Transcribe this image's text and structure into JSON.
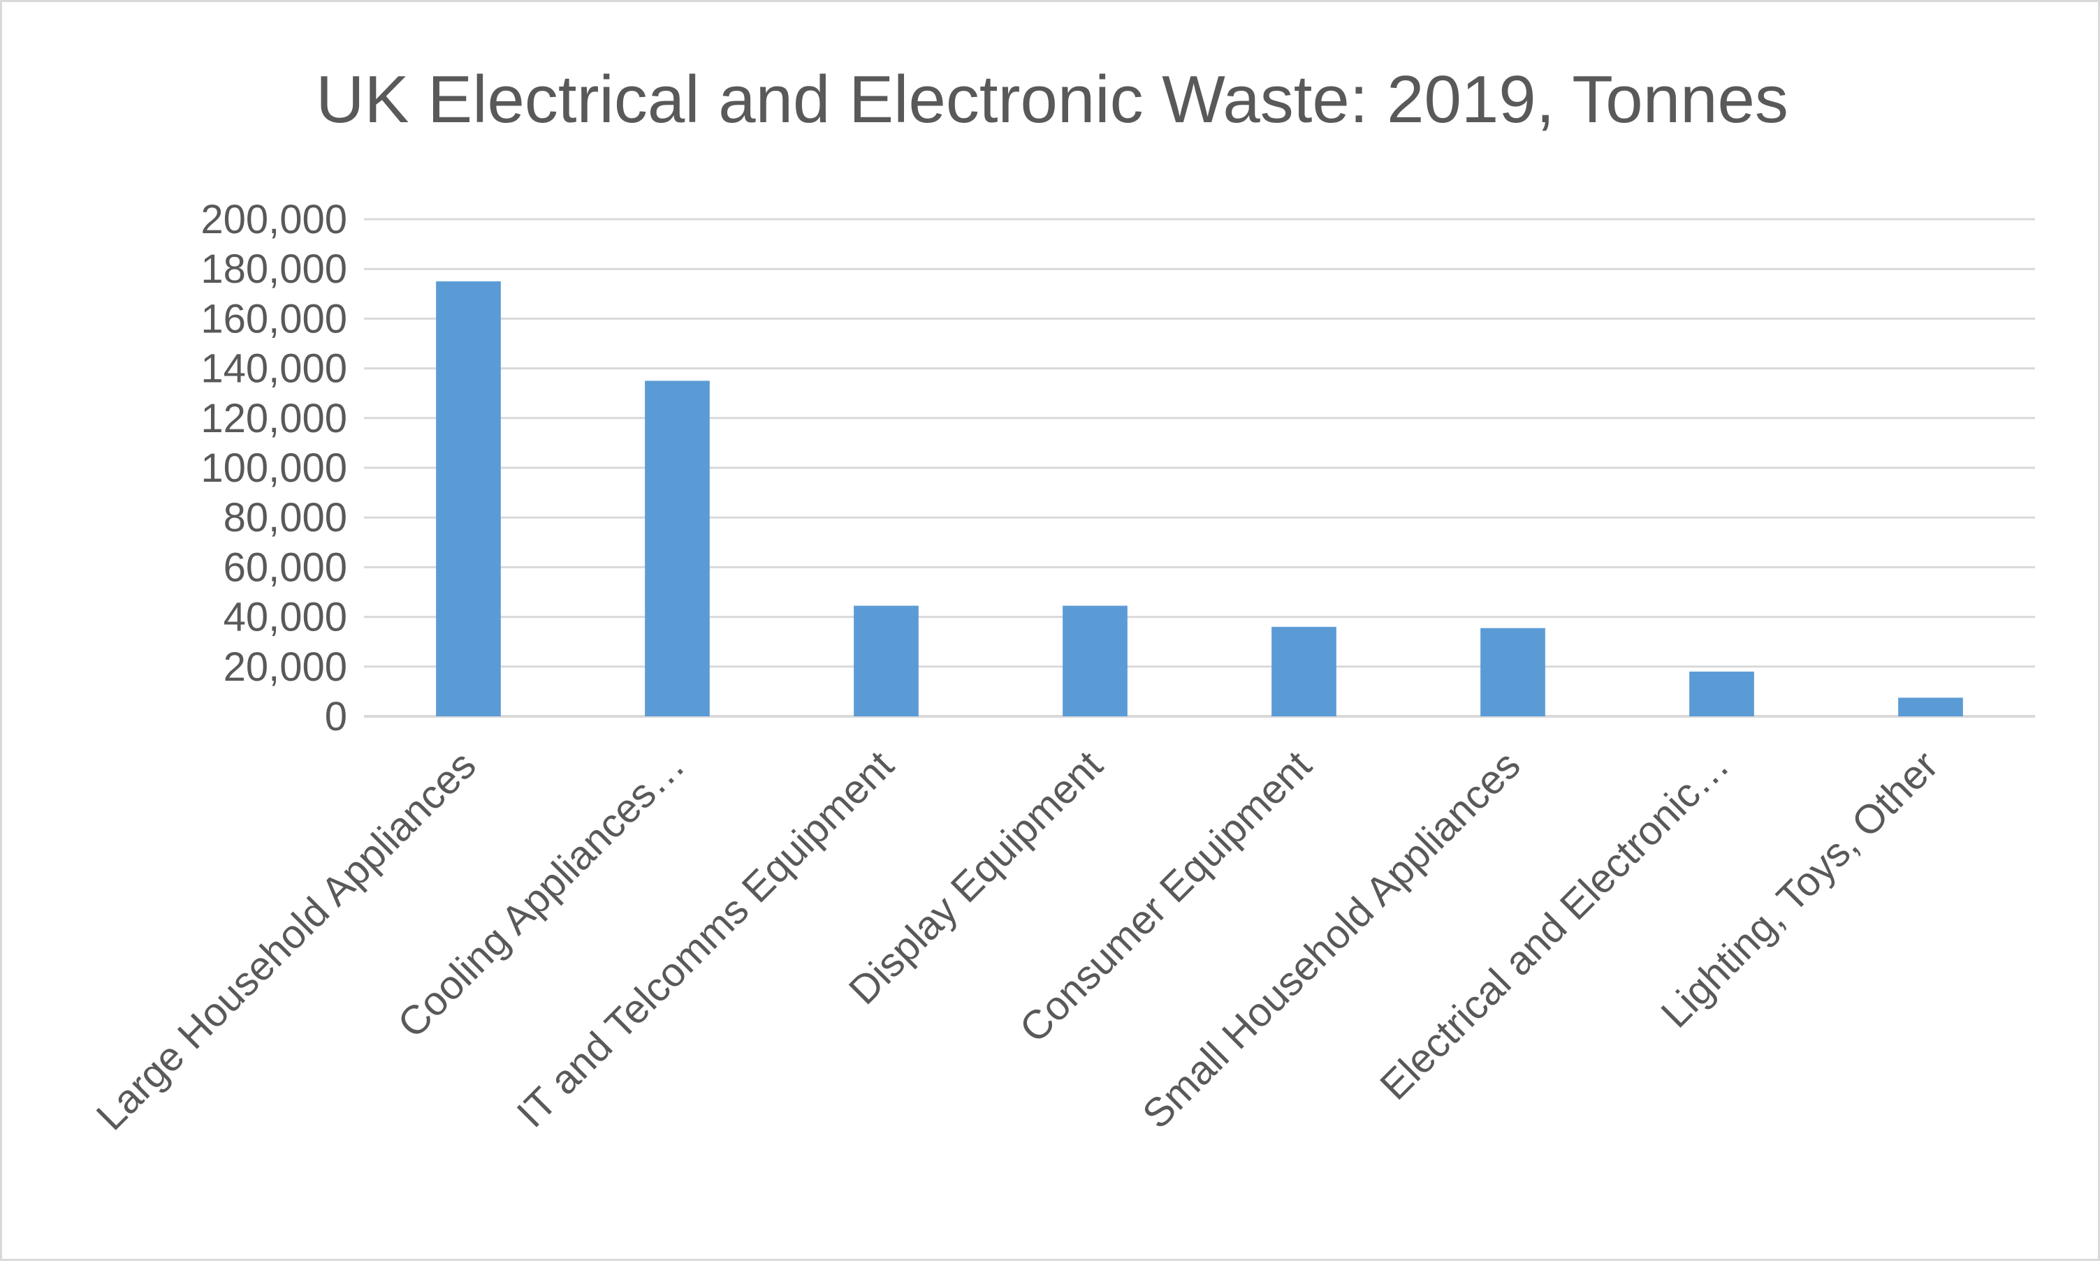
{
  "chart_data": {
    "type": "bar",
    "title": "UK Electrical and Electronic Waste: 2019, Tonnes",
    "xlabel": "",
    "ylabel": "",
    "categories": [
      "Large Household Appliances",
      "Cooling Appliances…",
      "IT and Telcomms Equipment",
      "Display Equipment",
      "Consumer Equipment",
      "Small Household Appliances",
      "Electrical and Electronic…",
      "Lighting, Toys, Other"
    ],
    "values": [
      175000,
      135000,
      44500,
      44500,
      36000,
      35500,
      18000,
      7500
    ],
    "ylim": [
      0,
      200000
    ],
    "yticks": [
      "0",
      "20,000",
      "40,000",
      "60,000",
      "80,000",
      "100,000",
      "120,000",
      "140,000",
      "160,000",
      "180,000",
      "200,000"
    ],
    "grid": true,
    "legend": "none",
    "bar_color": "#5b9bd5",
    "grid_color": "#d9d9d9",
    "text_color": "#595959"
  }
}
